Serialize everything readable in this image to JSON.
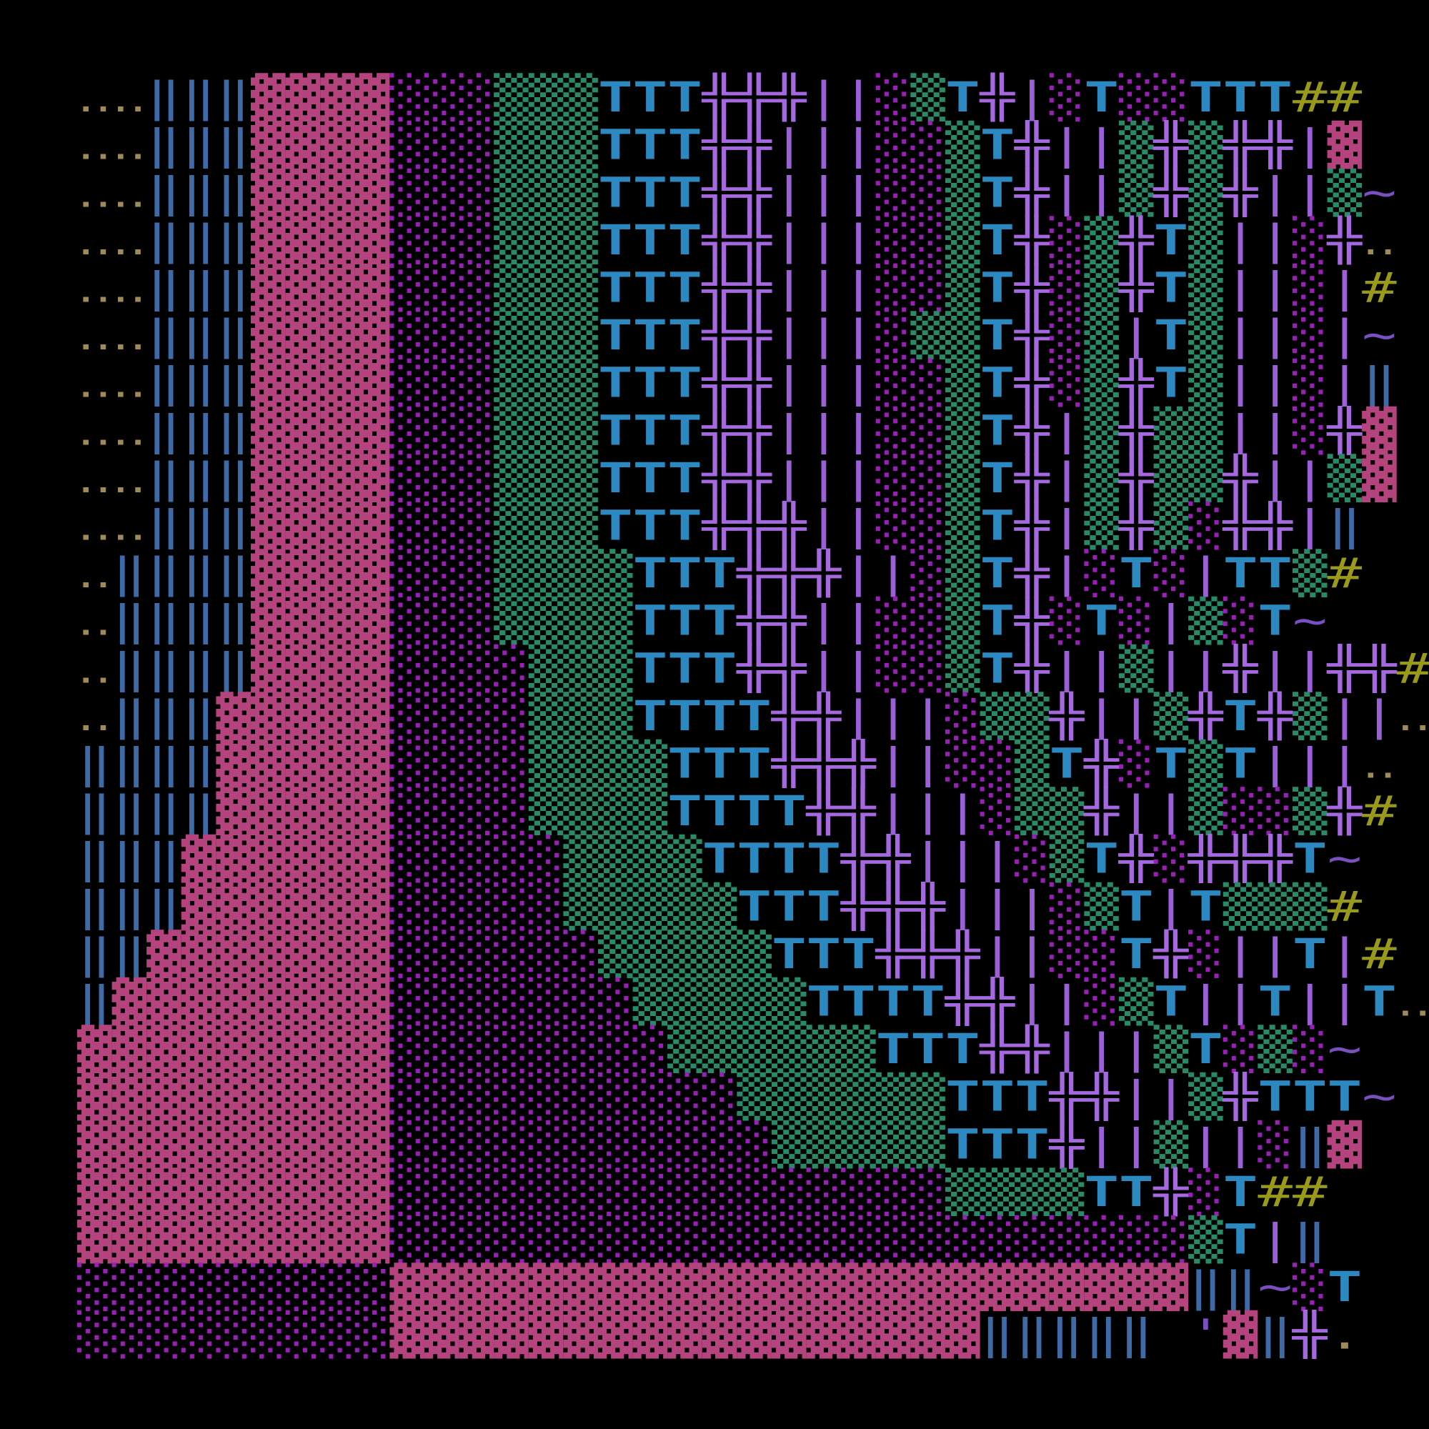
{
  "screen": {
    "rows": [
      [
        "‥‥",
        "‖‖‖",
        "▓▓▓▓",
        "░░░",
        "▒▒▒",
        "TTT",
        "╬╬╬",
        "||",
        "░",
        "▒",
        "T",
        "╬",
        "|",
        "░",
        "T",
        "░░",
        "TTT",
        "##"
      ],
      [
        "‥‥",
        "‖‖‖",
        "▓▓▓▓",
        "░░░",
        "▒▒▒",
        "TTT",
        "╬╬",
        "|||",
        "░░",
        "▒",
        "T",
        "╬",
        "||",
        "▒",
        "╬",
        "▒",
        "╬╬",
        "|",
        "▓"
      ],
      [
        "‥‥",
        "‖‖‖",
        "▓▓▓▓",
        "░░░",
        "▒▒▒",
        "TTT",
        "╬╬",
        "|||",
        "░░",
        "▒",
        "T",
        "╬",
        "||",
        "▒",
        "╬",
        "▒",
        "╬",
        "||",
        "▒",
        "~"
      ],
      [
        "‥‥",
        "‖‖‖",
        "▓▓▓▓",
        "░░░",
        "▒▒▒",
        "TTT",
        "╬╬",
        "|||",
        "░░",
        "▒",
        "T",
        "╬",
        "░",
        "▒",
        "╬",
        "T",
        "▒",
        "||",
        "░",
        "╬",
        "‥"
      ],
      [
        "‥‥",
        "‖‖‖",
        "▓▓▓▓",
        "░░░",
        "▒▒▒",
        "TTT",
        "╬╬",
        "|||",
        "░░",
        "▒",
        "T",
        "╬",
        "░",
        "▒",
        "╬",
        "T",
        "▒",
        "||",
        "░",
        "|",
        "#"
      ],
      [
        "‥‥",
        "‖‖‖",
        "▓▓▓▓",
        "░░░",
        "▒▒▒",
        "TTT",
        "╬╬",
        "|||",
        "░",
        "▒▒",
        "T",
        "╬",
        "░",
        "▒",
        "|",
        "T",
        "▒",
        "||",
        "░",
        "|",
        "~"
      ],
      [
        "‥‥",
        "‖‖‖",
        "▓▓▓▓",
        "░░░",
        "▒▒▒",
        "TTT",
        "╬╬",
        "|||",
        "░░",
        "▒",
        "T",
        "╬",
        "░",
        "▒",
        "╬",
        "T",
        "▒",
        "||",
        "░",
        "|",
        "‖"
      ],
      [
        "‥‥",
        "‖‖‖",
        "▓▓▓▓",
        "░░░",
        "▒▒▒",
        "TTT",
        "╬╬",
        "|||",
        "░░",
        "▒",
        "T",
        "╬",
        "|",
        "▒",
        "╬",
        "▒▒",
        "||",
        "░",
        "╬",
        "▓"
      ],
      [
        "‥‥",
        "‖‖‖",
        "▓▓▓▓",
        "░░░",
        "▒▒▒",
        "TTT",
        "╬╬",
        "|||",
        "░░",
        "▒",
        "T",
        "╬",
        "|",
        "▒",
        "╬",
        "▒▒",
        "╬",
        "||",
        "▒",
        "▓"
      ],
      [
        "‥‥",
        "‖‖‖",
        "▓▓▓▓",
        "░░░",
        "▒▒▒",
        "TTT",
        "╬╬╬",
        "||",
        "░░",
        "▒",
        "T",
        "╬",
        "|",
        "▒",
        "╬",
        "▒",
        "░",
        "╬╬",
        "|",
        "‖"
      ],
      [
        "‥",
        "‖‖‖‖",
        "▓▓▓▓",
        "░░░",
        "▒▒▒▒",
        "TTT",
        "╬╬╬",
        "||",
        "░",
        "▒",
        "T",
        "╬",
        "|",
        "░",
        "T",
        "░",
        "|",
        "TT",
        "▒",
        "#"
      ],
      [
        "‥",
        "‖‖‖‖",
        "▓▓▓▓",
        "░░░",
        "▒▒▒▒",
        "TTT",
        "╬╬",
        "||",
        "░░",
        "▒",
        "T",
        "╬",
        "░",
        "T",
        "░",
        "|",
        "▒",
        "░",
        "T",
        "~"
      ],
      [
        "‥",
        "‖‖‖‖",
        "▓▓▓▓",
        "░░░░",
        "▒▒▒",
        "TTT",
        "╬╬",
        "||",
        "░░",
        "▒",
        "T",
        "╬",
        "||",
        "▒",
        "||",
        "╬",
        "||",
        "╬╬",
        "#"
      ],
      [
        "‥",
        "‖‖‖",
        "▓▓▓▓▓",
        "░░░░",
        "▒▒▒",
        "TTTT",
        "╬╬",
        "|||",
        "░",
        "▒▒",
        "╬",
        "||",
        "▒",
        "╬",
        "T",
        "╬",
        "▒",
        "||",
        "‥"
      ],
      [
        "‖‖‖‖",
        "▓▓▓▓▓",
        "░░░░",
        "▒▒▒▒",
        "TTT",
        "╬╬╬",
        "||",
        "░",
        "░",
        "▒",
        "T",
        "╬",
        "░",
        "T",
        "▒",
        "T",
        "|||",
        "‥"
      ],
      [
        "‖‖‖‖",
        "▓▓▓▓▓",
        "░░░░",
        "▒▒▒▒",
        "TTTT",
        "╬╬",
        "|||",
        "░",
        "▒▒",
        "╬",
        "||",
        "▒",
        "░",
        "░",
        "▒",
        "╬",
        "#"
      ],
      [
        "‖‖‖",
        "▓▓▓▓▓▓",
        "░░░░░",
        "▒▒▒▒",
        "TTTT",
        "╬╬",
        "|||",
        "░",
        "▒",
        "T",
        "╬",
        "░",
        "╬╬╬",
        "T",
        "~"
      ],
      [
        "‖‖‖",
        "▓▓▓▓▓▓",
        "░░░░░",
        "▒▒▒▒▒",
        "TTT",
        "╬╬╬",
        "|||",
        "░",
        "▒",
        "T",
        "|",
        "T",
        "▒▒▒",
        "#"
      ],
      [
        "‖‖",
        "▓▓▓▓▓▓▓",
        "░░░░░░",
        "▒▒▒▒▒",
        "TTT",
        "╬╬╬",
        "||",
        "░░",
        "T",
        "╬",
        "░",
        "||",
        "T",
        "|",
        "#"
      ],
      [
        "‖",
        "▓▓▓▓▓▓▓▓",
        "░░░░░░░",
        "▒▒▒▒▒",
        "TTTT",
        "╬╬",
        "||",
        "░",
        "▒",
        "T",
        "||",
        "T",
        "||",
        "T",
        "‥"
      ],
      [
        "▓▓▓▓▓▓▓▓▓",
        "░░░░░░░░",
        "▒▒▒▒▒▒",
        "TTT",
        "╬╬",
        "|||",
        "▒",
        "T",
        "░",
        "▒",
        "░",
        "~"
      ],
      [
        "▓▓▓▓▓▓▓▓▓",
        "░░░░░░░░░░",
        "▒▒▒▒▒▒",
        "TTT",
        "╬╬",
        "||",
        "▒",
        "╬",
        "TTT",
        "~"
      ],
      [
        "▓▓▓▓▓▓▓▓▓",
        "░░░░░░░░░░░",
        "▒▒▒▒▒",
        "TTT",
        "╬",
        "||",
        "▒",
        "||",
        "░",
        "‖",
        "▓"
      ],
      [
        "▓▓▓▓▓▓▓▓▓",
        "░░░░░░░░░░░░░░░░",
        "▒▒▒▒",
        "TT",
        "╬",
        "░",
        "T",
        "##"
      ],
      [
        "▓▓▓▓▓▓▓▓▓",
        "░░░░░░░░░░░░░░░░░░░░░░░",
        "▒",
        "T",
        "|",
        "‖"
      ],
      [
        "░░░░░░░░░",
        "▓▓▓▓▓▓▓▓▓▓▓▓▓▓▓▓▓▓▓▓▓▓▓",
        "‖",
        "‖",
        "~",
        "░",
        "T"
      ],
      [
        "░░░░░░░░░",
        "▓▓▓▓▓▓▓▓▓▓▓▓▓▓▓▓▓",
        "‖‖‖‖‖",
        null,
        "'",
        "▓",
        "‖",
        "╬",
        "."
      ]
    ]
  }
}
